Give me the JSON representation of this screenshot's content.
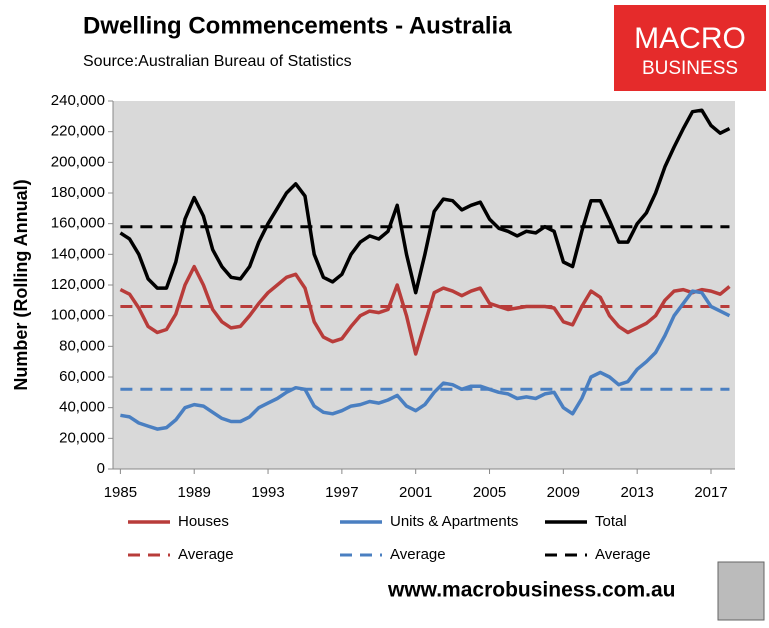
{
  "chart_data": {
    "type": "line",
    "title": "Dwelling Commencements - Australia",
    "subtitle": "Source:Australian Bureau of Statistics",
    "y_label": "Number (Rolling Annual)",
    "logo": [
      "MACRO",
      "BUSINESS"
    ],
    "footer": "www.macrobusiness.com.au",
    "x": [
      1985,
      1985.5,
      1986,
      1986.5,
      1987,
      1987.5,
      1988,
      1988.5,
      1989,
      1989.5,
      1990,
      1990.5,
      1991,
      1991.5,
      1992,
      1992.5,
      1993,
      1993.5,
      1994,
      1994.5,
      1995,
      1995.5,
      1996,
      1996.5,
      1997,
      1997.5,
      1998,
      1998.5,
      1999,
      1999.5,
      2000,
      2000.5,
      2001,
      2001.5,
      2002,
      2002.5,
      2003,
      2003.5,
      2004,
      2004.5,
      2005,
      2005.5,
      2006,
      2006.5,
      2007,
      2007.5,
      2008,
      2008.5,
      2009,
      2009.5,
      2010,
      2010.5,
      2011,
      2011.5,
      2012,
      2012.5,
      2013,
      2013.5,
      2014,
      2014.5,
      2015,
      2015.5,
      2016,
      2016.5,
      2017,
      2017.5,
      2018
    ],
    "series": [
      {
        "name": "Houses",
        "color": "#b83c3a",
        "values": [
          117000,
          114000,
          105000,
          93000,
          89000,
          91000,
          101000,
          120000,
          132000,
          120000,
          104000,
          96000,
          92000,
          93000,
          100000,
          108000,
          115000,
          120000,
          125000,
          127000,
          118000,
          96000,
          86000,
          83000,
          85000,
          93000,
          100000,
          103000,
          102000,
          104000,
          120000,
          100000,
          75000,
          95000,
          115000,
          118000,
          116000,
          113000,
          116000,
          118000,
          108000,
          106000,
          104000,
          105000,
          106000,
          106000,
          106000,
          105000,
          96000,
          94000,
          106000,
          116000,
          112000,
          100000,
          93000,
          89000,
          92000,
          95000,
          100000,
          110000,
          116000,
          117000,
          115000,
          117000,
          116000,
          114000,
          119000
        ]
      },
      {
        "name": "Units & Apartments",
        "color": "#4a7fc1",
        "values": [
          35000,
          34000,
          30000,
          28000,
          26000,
          27000,
          32000,
          40000,
          42000,
          41000,
          37000,
          33000,
          31000,
          31000,
          34000,
          40000,
          43000,
          46000,
          50000,
          53000,
          52000,
          41000,
          37000,
          36000,
          38000,
          41000,
          42000,
          44000,
          43000,
          45000,
          48000,
          41000,
          38000,
          42000,
          50000,
          56000,
          55000,
          52000,
          54000,
          54000,
          52000,
          50000,
          49000,
          46000,
          47000,
          46000,
          49000,
          50000,
          40000,
          36000,
          46000,
          60000,
          63000,
          60000,
          55000,
          57000,
          65000,
          70000,
          76000,
          87000,
          100000,
          108000,
          116000,
          115000,
          106000,
          103000,
          100000
        ]
      },
      {
        "name": "Total",
        "color": "#000000",
        "values": [
          154000,
          150000,
          140000,
          124000,
          118000,
          118000,
          135000,
          163000,
          177000,
          165000,
          143000,
          132000,
          125000,
          124000,
          132000,
          148000,
          160000,
          170000,
          180000,
          186000,
          178000,
          140000,
          125000,
          122000,
          127000,
          140000,
          148000,
          152000,
          150000,
          155000,
          172000,
          140000,
          115000,
          140000,
          168000,
          176000,
          175000,
          169000,
          172000,
          174000,
          163000,
          157000,
          155000,
          152000,
          155000,
          154000,
          158000,
          155000,
          135000,
          132000,
          155000,
          175000,
          175000,
          162000,
          148000,
          148000,
          160000,
          167000,
          180000,
          197000,
          210000,
          222000,
          233000,
          234000,
          224000,
          219000,
          222000
        ]
      }
    ],
    "averages": [
      {
        "name": "Average",
        "color": "#b83c3a",
        "value": 106000
      },
      {
        "name": "Average",
        "color": "#4a7fc1",
        "value": 52000
      },
      {
        "name": "Average",
        "color": "#000000",
        "value": 158000
      }
    ],
    "xlim": [
      1984.6,
      2018.3
    ],
    "xticks": [
      1985,
      1989,
      1993,
      1997,
      2001,
      2005,
      2009,
      2013,
      2017
    ],
    "ylim": [
      0,
      240000
    ],
    "yticks": [
      0,
      {
        "value": 20000,
        "label": "20,000"
      },
      {
        "value": 40000,
        "label": "40,000"
      },
      {
        "value": 60000,
        "label": "60,000"
      },
      {
        "value": 80000,
        "label": "80,000"
      },
      {
        "value": 100000,
        "label": "100,000"
      },
      {
        "value": 120000,
        "label": "120,000"
      },
      {
        "value": 140000,
        "label": "140,000"
      },
      {
        "value": 160000,
        "label": "160,000"
      },
      {
        "value": 180000,
        "label": "180,000"
      },
      {
        "value": 200000,
        "label": "200,000"
      },
      {
        "value": 220000,
        "label": "220,000"
      },
      {
        "value": 240000,
        "label": "240,000"
      }
    ],
    "grid": false
  }
}
